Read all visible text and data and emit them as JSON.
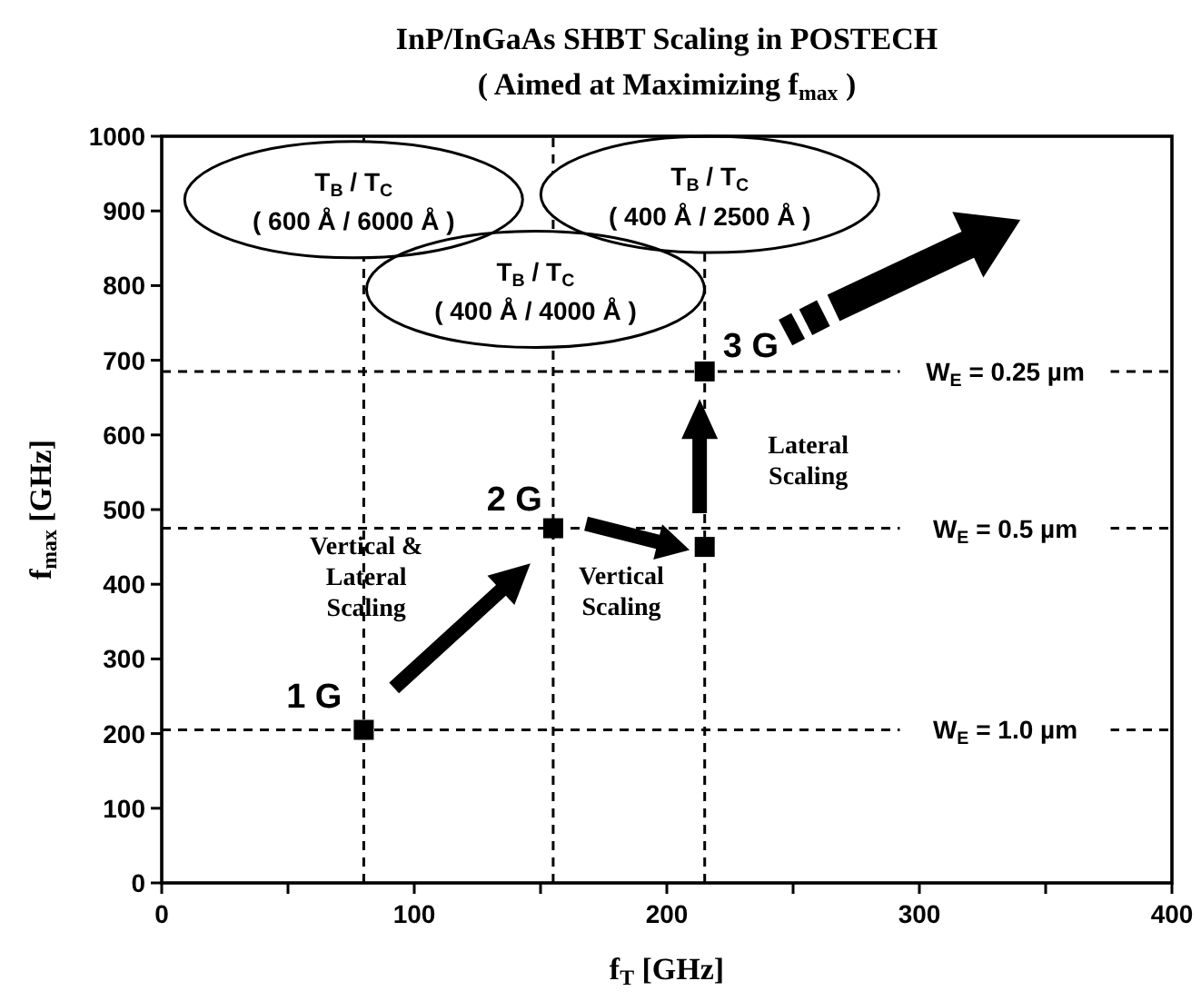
{
  "chart_data": {
    "type": "scatter",
    "title": "InP/InGaAs SHBT Scaling in POSTECH",
    "subtitle": "( Aimed at Maximizing f$_{max}$ )",
    "xlabel": "f$_{T}$ [GHz]",
    "ylabel": "f$_{max}$ [GHz]",
    "xlim": [
      0,
      400
    ],
    "xticks": [
      0,
      {
        "value": 50,
        "label": null
      },
      100,
      {
        "value": 150,
        "label": null
      },
      200,
      {
        "value": 250,
        "label": null
      },
      300,
      {
        "value": 350,
        "label": null
      },
      400
    ],
    "ylim": [
      0,
      1000
    ],
    "yticks": [
      0,
      100,
      200,
      300,
      400,
      500,
      600,
      700,
      800,
      900,
      1000
    ],
    "grid": false,
    "marker": "square",
    "series": [
      {
        "color": "#000000",
        "x": [
          80,
          155,
          215,
          215
        ],
        "values": [
          205,
          475,
          450,
          685
        ]
      }
    ],
    "ref_lines": [
      {
        "axis": "y",
        "value": 685,
        "line_style": "dashed",
        "color": "#000000"
      },
      {
        "axis": "y",
        "value": 475,
        "line_style": "dashed",
        "color": "#000000"
      },
      {
        "axis": "y",
        "value": 205,
        "line_style": "dashed",
        "color": "#000000"
      },
      {
        "axis": "x",
        "value": 80,
        "line_style": "dashed",
        "color": "#000000"
      },
      {
        "axis": "x",
        "value": 155,
        "line_style": "dashed",
        "color": "#000000"
      },
      {
        "axis": "x",
        "value": 215,
        "line_style": "dashed",
        "color": "#000000"
      }
    ],
    "annotations": [
      {
        "text": "1 G",
        "x": 80,
        "y": 205
      },
      {
        "text": "2 G",
        "x": 155,
        "y": 475
      },
      {
        "text": "3 G",
        "x": 215,
        "y": 685
      },
      {
        "text": "W$_{E}$ = 0.25 µm",
        "y": 685
      },
      {
        "text": "W$_{E}$ = 0.5 µm",
        "y": 475
      },
      {
        "text": "W$_{E}$ = 1.0 µm",
        "y": 205
      },
      "Vertical &\nLateral\nScaling",
      "Vertical\nScaling",
      "Lateral\nScaling",
      "T$_{B}$ / T$_{C}$\n( 600 Å / 6000 Å )",
      "T$_{B}$ / T$_{C}$\n( 400 Å / 4000 Å )",
      "T$_{B}$ / T$_{C}$\n( 400 Å / 2500 Å )"
    ]
  }
}
